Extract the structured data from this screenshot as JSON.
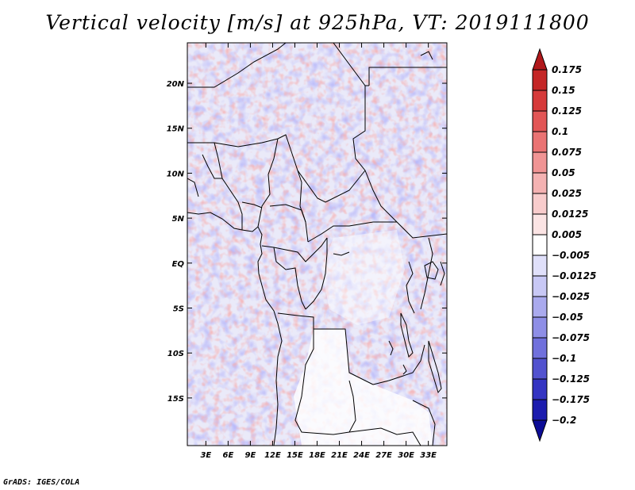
{
  "title": "Vertical velocity [m/s] at 925hPa, VT: 2019111800",
  "footer": "GrADS: IGES/COLA",
  "map": {
    "lat_ticks": [
      {
        "label": "20N",
        "lat": 20
      },
      {
        "label": "15N",
        "lat": 15
      },
      {
        "label": "10N",
        "lat": 10
      },
      {
        "label": "5N",
        "lat": 5
      },
      {
        "label": "EQ",
        "lat": 0
      },
      {
        "label": "5S",
        "lat": -5
      },
      {
        "label": "10S",
        "lat": -10
      },
      {
        "label": "15S",
        "lat": -15
      }
    ],
    "lon_ticks": [
      {
        "label": "3E",
        "lon": 3
      },
      {
        "label": "6E",
        "lon": 6
      },
      {
        "label": "9E",
        "lon": 9
      },
      {
        "label": "12E",
        "lon": 12
      },
      {
        "label": "15E",
        "lon": 15
      },
      {
        "label": "18E",
        "lon": 18
      },
      {
        "label": "21E",
        "lon": 21
      },
      {
        "label": "24E",
        "lon": 24
      },
      {
        "label": "27E",
        "lon": 27
      },
      {
        "label": "30E",
        "lon": 30
      },
      {
        "label": "33E",
        "lon": 33
      }
    ],
    "lon_range": [
      0.5,
      35.5
    ],
    "lat_range": [
      -20.3,
      24.5
    ]
  },
  "colorbar": {
    "labels": [
      "0.175",
      "0.15",
      "0.125",
      "0.1",
      "0.075",
      "0.05",
      "0.025",
      "0.0125",
      "0.005",
      "−0.005",
      "−0.0125",
      "−0.025",
      "−0.05",
      "−0.075",
      "−0.1",
      "−0.125",
      "−0.175",
      "−0.2"
    ],
    "colors": [
      "#b0181b",
      "#c42626",
      "#d63a3a",
      "#e25656",
      "#ea7373",
      "#f09494",
      "#f4b2b2",
      "#f8cccc",
      "#fbe4e4",
      "#ffffff",
      "#e0e0fa",
      "#c8c8f5",
      "#aaaaee",
      "#8e8ee6",
      "#7070dc",
      "#5252cf",
      "#3434c2",
      "#1c1cae",
      "#0c0c96"
    ]
  }
}
